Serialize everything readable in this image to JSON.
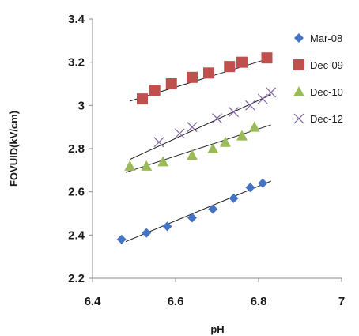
{
  "chart_data": {
    "type": "scatter",
    "title": "",
    "xlabel": "pH",
    "ylabel": "FOVUID(kV/cm)",
    "xlim": [
      6.4,
      7.0
    ],
    "ylim": [
      2.2,
      3.4
    ],
    "x_ticks": [
      6.4,
      6.6,
      6.8,
      7.0
    ],
    "x_tick_labels": [
      "6.4",
      "6.6",
      "6.8",
      "7"
    ],
    "y_ticks": [
      2.2,
      2.4,
      2.6,
      2.8,
      3.0,
      3.2,
      3.4
    ],
    "y_tick_labels": [
      "2.2",
      "2.4",
      "2.6",
      "2.8",
      "3",
      "3.2",
      "3.4"
    ],
    "grid": false,
    "legend_position": "right",
    "series": [
      {
        "name": "Mar-08",
        "marker": "diamond",
        "color": "#4472C4",
        "x": [
          6.47,
          6.53,
          6.58,
          6.64,
          6.69,
          6.74,
          6.78,
          6.81
        ],
        "y": [
          2.38,
          2.41,
          2.44,
          2.48,
          2.52,
          2.57,
          2.62,
          2.64
        ],
        "trendline": {
          "x": [
            6.48,
            6.83
          ],
          "y": [
            2.37,
            2.65
          ]
        }
      },
      {
        "name": "Dec-09",
        "marker": "square",
        "color": "#C0504D",
        "x": [
          6.52,
          6.55,
          6.59,
          6.64,
          6.68,
          6.73,
          6.76,
          6.82
        ],
        "y": [
          3.03,
          3.07,
          3.1,
          3.13,
          3.15,
          3.18,
          3.2,
          3.22
        ],
        "trendline": {
          "x": [
            6.49,
            6.83
          ],
          "y": [
            3.02,
            3.22
          ]
        }
      },
      {
        "name": "Dec-10",
        "marker": "triangle",
        "color": "#9BBB59",
        "x": [
          6.49,
          6.53,
          6.57,
          6.64,
          6.69,
          6.72,
          6.76,
          6.79
        ],
        "y": [
          2.72,
          2.72,
          2.74,
          2.77,
          2.8,
          2.83,
          2.86,
          2.9
        ],
        "trendline": {
          "x": [
            6.48,
            6.83
          ],
          "y": [
            2.69,
            2.91
          ]
        }
      },
      {
        "name": "Dec-12",
        "marker": "x",
        "color": "#8064A2",
        "x": [
          6.56,
          6.61,
          6.64,
          6.7,
          6.74,
          6.78,
          6.81,
          6.83
        ],
        "y": [
          2.83,
          2.87,
          2.9,
          2.94,
          2.97,
          3.0,
          3.03,
          3.06
        ],
        "trendline": {
          "x": [
            6.49,
            6.83
          ],
          "y": [
            2.75,
            3.05
          ]
        }
      }
    ]
  }
}
